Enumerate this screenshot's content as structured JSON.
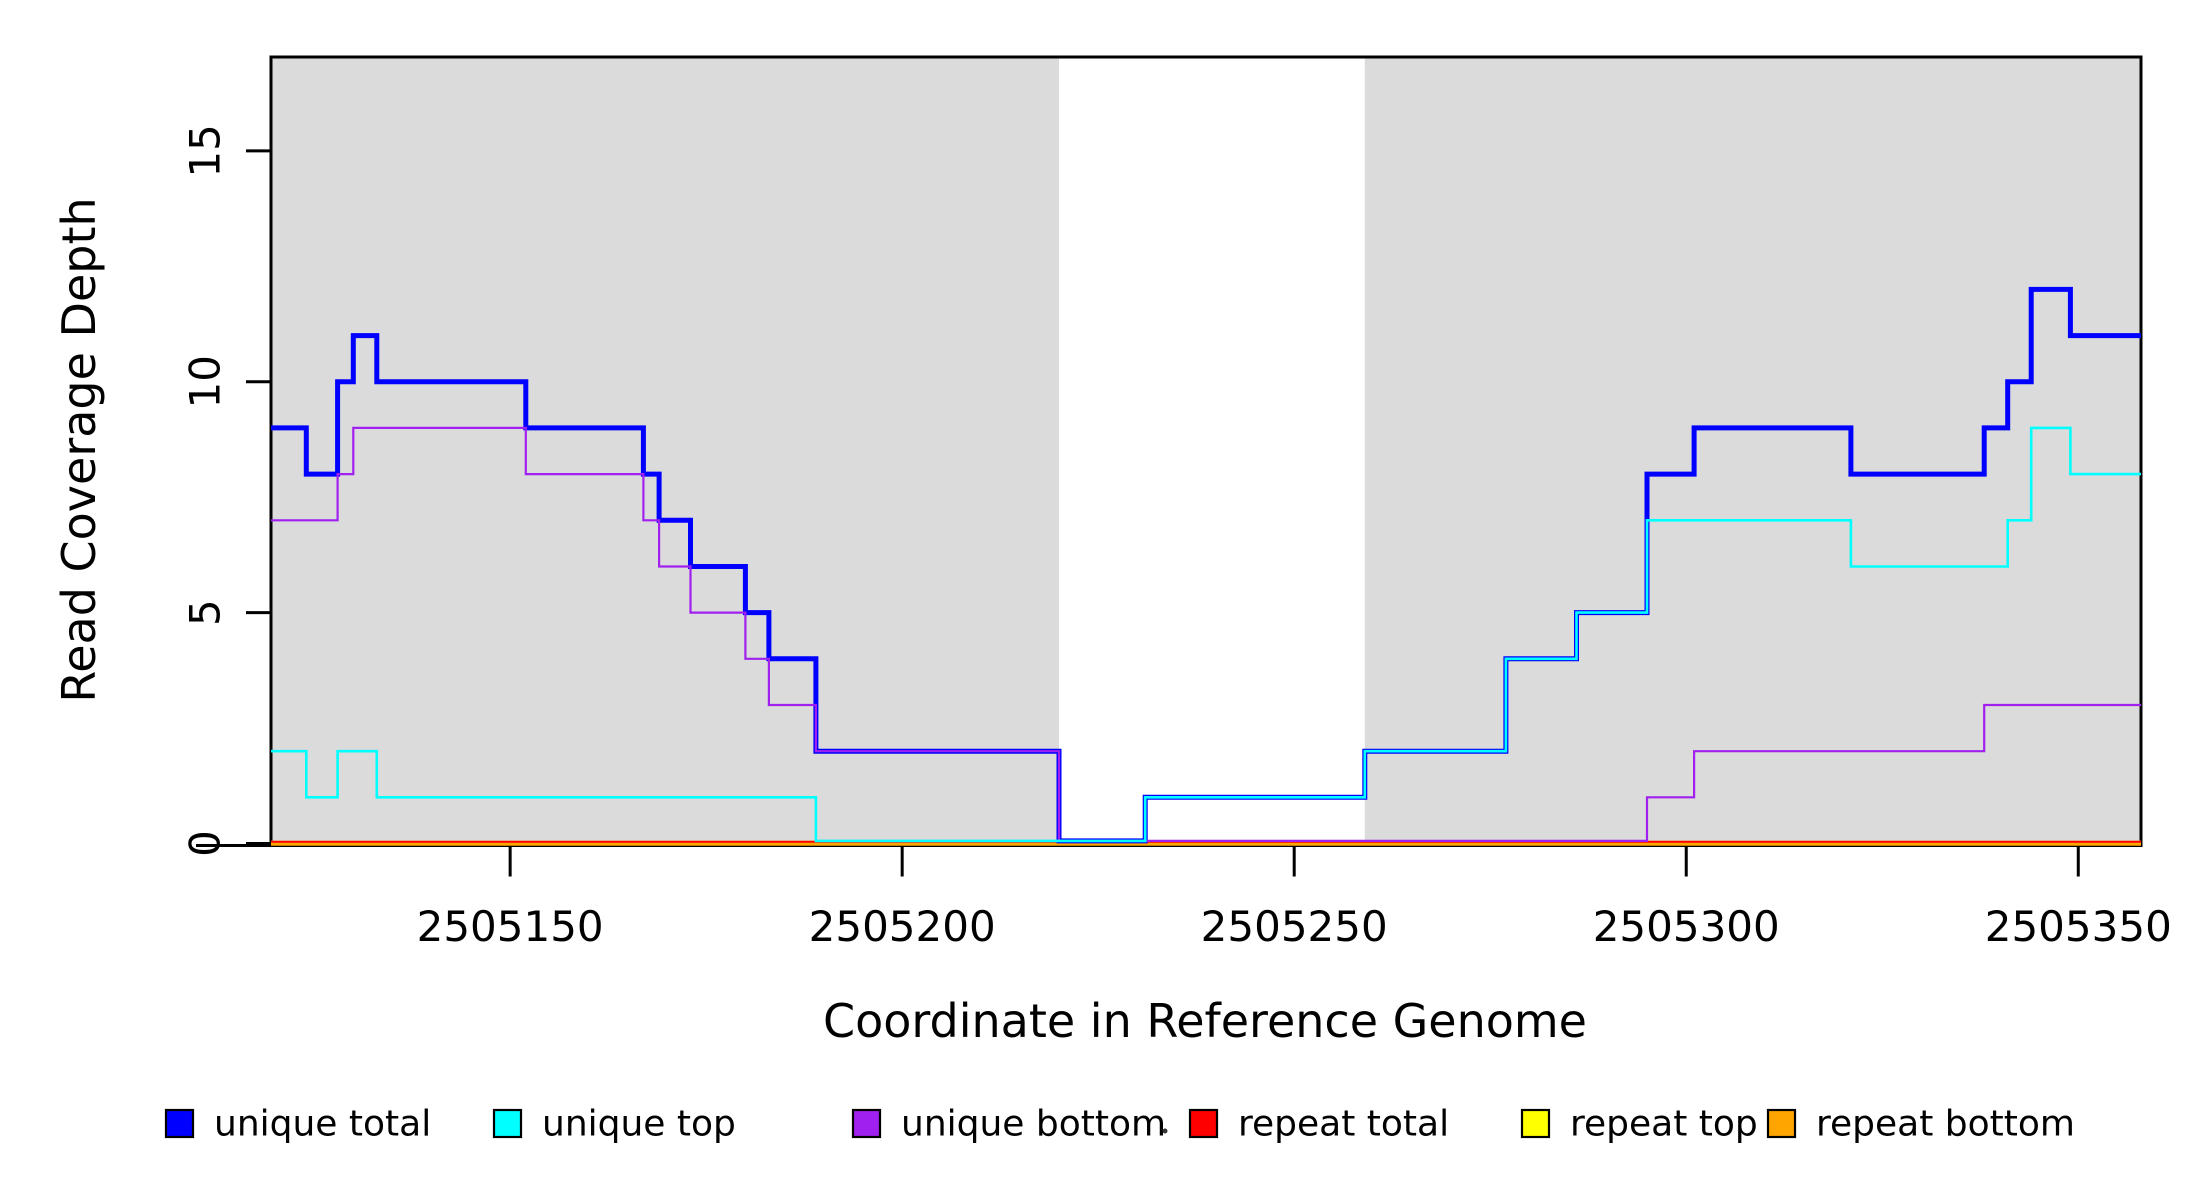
{
  "chart_data": {
    "type": "line",
    "subtype": "step",
    "title": "",
    "xlabel": "Coordinate in Reference Genome",
    "ylabel": "Read Coverage Depth",
    "xlim": [
      2505119.5,
      2505358
    ],
    "ylim": [
      0,
      17
    ],
    "grid": false,
    "legend_position": "bottom",
    "x_ticks": [
      2505150,
      2505200,
      2505250,
      2505300,
      2505350
    ],
    "x_tick_labels": [
      "2505150",
      "2505200",
      "2505250",
      "2505300",
      "2505350"
    ],
    "y_ticks": [
      0,
      5,
      10,
      15
    ],
    "y_tick_labels": [
      "0",
      "5",
      "10",
      "15"
    ],
    "region_color": "#DBDBDB",
    "shaded_regions": [
      {
        "x0": 2505119.5,
        "x1": 2505220
      },
      {
        "x0": 2505259,
        "x1": 2505358
      }
    ],
    "series": [
      {
        "name": "unique total",
        "color": "#0000FF",
        "width": 5,
        "steps": [
          [
            2505119.5,
            9
          ],
          [
            2505124,
            8
          ],
          [
            2505128,
            10
          ],
          [
            2505130,
            11
          ],
          [
            2505133,
            10
          ],
          [
            2505152,
            9
          ],
          [
            2505167,
            8
          ],
          [
            2505169,
            7
          ],
          [
            2505173,
            6
          ],
          [
            2505180,
            5
          ],
          [
            2505183,
            4
          ],
          [
            2505189,
            2
          ],
          [
            2505220,
            0
          ],
          [
            2505231,
            1
          ],
          [
            2505259,
            2
          ],
          [
            2505277,
            4
          ],
          [
            2505286,
            5
          ],
          [
            2505295,
            8
          ],
          [
            2505301,
            9
          ],
          [
            2505321,
            8
          ],
          [
            2505338,
            9
          ],
          [
            2505341,
            10
          ],
          [
            2505344,
            12
          ],
          [
            2505349,
            11
          ],
          [
            2505358,
            11
          ]
        ]
      },
      {
        "name": "unique top",
        "color": "#00FFFF",
        "width": 2.6,
        "steps": [
          [
            2505119.5,
            2
          ],
          [
            2505124,
            1
          ],
          [
            2505128,
            2
          ],
          [
            2505133,
            1
          ],
          [
            2505189,
            0
          ],
          [
            2505231,
            1
          ],
          [
            2505259,
            2
          ],
          [
            2505277,
            4
          ],
          [
            2505286,
            5
          ],
          [
            2505295,
            7
          ],
          [
            2505321,
            6
          ],
          [
            2505341,
            7
          ],
          [
            2505344,
            9
          ],
          [
            2505349,
            8
          ],
          [
            2505358,
            8
          ]
        ]
      },
      {
        "name": "unique bottom",
        "color": "#A020F0",
        "width": 2.2,
        "steps": [
          [
            2505119.5,
            7
          ],
          [
            2505128,
            8
          ],
          [
            2505130,
            9
          ],
          [
            2505152,
            8
          ],
          [
            2505167,
            7
          ],
          [
            2505169,
            6
          ],
          [
            2505173,
            5
          ],
          [
            2505180,
            4
          ],
          [
            2505183,
            3
          ],
          [
            2505189,
            2
          ],
          [
            2505220,
            0
          ],
          [
            2505295,
            1
          ],
          [
            2505301,
            2
          ],
          [
            2505338,
            3
          ],
          [
            2505358,
            3
          ]
        ]
      },
      {
        "name": "repeat total",
        "color": "#FF0000",
        "width": 2.2,
        "steps": [
          [
            2505119.5,
            0
          ],
          [
            2505358,
            0
          ]
        ]
      },
      {
        "name": "repeat top",
        "color": "#FFFF00",
        "width": 2.2,
        "steps": [
          [
            2505119.5,
            0
          ],
          [
            2505358,
            0
          ]
        ]
      },
      {
        "name": "repeat bottom",
        "color": "#FFA500",
        "width": 3,
        "steps": [
          [
            2505119.5,
            0
          ],
          [
            2505358,
            0
          ]
        ]
      }
    ],
    "legend": [
      {
        "label": "unique total",
        "color": "#0000FF"
      },
      {
        "label": "unique top",
        "color": "#00FFFF"
      },
      {
        "label": "unique bottom",
        "color": "#A020F0"
      },
      {
        "label": "repeat total",
        "color": "#FF0000"
      },
      {
        "label": "repeat top",
        "color": "#FFFF00"
      },
      {
        "label": "repeat bottom",
        "color": "#FFA500"
      }
    ]
  }
}
